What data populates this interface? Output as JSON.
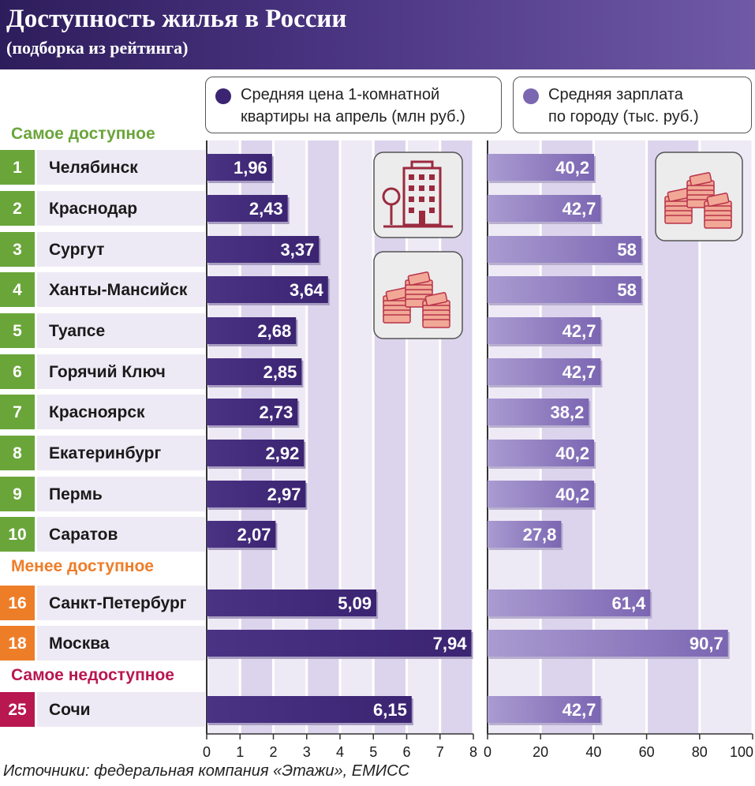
{
  "header": {
    "title": "Доступность жилья в России",
    "subtitle": "(подборка из рейтинга)"
  },
  "legend": {
    "price": "Средняя цена 1-комнатной\nквартиры на апрель (млн руб.)",
    "salary": "Средняя зарплата\nпо городу (тыс. руб.)"
  },
  "sections": {
    "most": "Самое доступное",
    "less": "Менее доступное",
    "least": "Самое недоступное"
  },
  "source": "Источники: федеральная компания «Этажи», ЕМИСС",
  "icons": [
    "building-icon",
    "banknotes-icon"
  ],
  "colors": {
    "most": "#6aa53a",
    "less": "#ee7d28",
    "least": "#b8174f",
    "price_bar": "#3b2472",
    "salary_bar": "#7b66b2"
  },
  "chart_data": [
    {
      "type": "bar",
      "orientation": "horizontal",
      "categories": [
        "Челябинск",
        "Краснодар",
        "Сургут",
        "Ханты-Мансийск",
        "Туапсе",
        "Горячий Ключ",
        "Красноярск",
        "Екатеринбург",
        "Пермь",
        "Саратов",
        "Санкт-Петербург",
        "Москва",
        "Сочи"
      ],
      "ranks": [
        "1",
        "2",
        "3",
        "4",
        "5",
        "6",
        "7",
        "8",
        "9",
        "10",
        "16",
        "18",
        "25"
      ],
      "groups": [
        "most",
        "most",
        "most",
        "most",
        "most",
        "most",
        "most",
        "most",
        "most",
        "most",
        "less",
        "less",
        "least"
      ],
      "series": [
        {
          "values": [
            1.96,
            2.43,
            3.37,
            3.64,
            2.68,
            2.85,
            2.73,
            2.92,
            2.97,
            2.07,
            5.09,
            7.94,
            6.15
          ]
        }
      ],
      "value_labels": [
        "1,96",
        "2,43",
        "3,37",
        "3,64",
        "2,68",
        "2,85",
        "2,73",
        "2,92",
        "2,97",
        "2,07",
        "5,09",
        "7,94",
        "6,15"
      ],
      "xlim": [
        0,
        8
      ],
      "ticks": [
        0,
        1,
        2,
        3,
        4,
        5,
        6,
        7,
        8
      ],
      "tick_labels": [
        "0",
        "1",
        "2",
        "3",
        "4",
        "5",
        "6",
        "7",
        "8"
      ],
      "grid": true
    },
    {
      "type": "bar",
      "orientation": "horizontal",
      "series": [
        {
          "values": [
            40.2,
            42.7,
            58,
            58,
            42.7,
            42.7,
            38.2,
            40.2,
            40.2,
            27.8,
            61.4,
            90.7,
            42.7
          ]
        }
      ],
      "value_labels": [
        "40,2",
        "42,7",
        "58",
        "58",
        "42,7",
        "42,7",
        "38,2",
        "40,2",
        "40,2",
        "27,8",
        "61,4",
        "90,7",
        "42,7"
      ],
      "xlim": [
        0,
        100
      ],
      "ticks": [
        0,
        20,
        40,
        60,
        80,
        100
      ],
      "tick_labels": [
        "0",
        "20",
        "40",
        "60",
        "80",
        "100"
      ],
      "grid": true
    }
  ]
}
